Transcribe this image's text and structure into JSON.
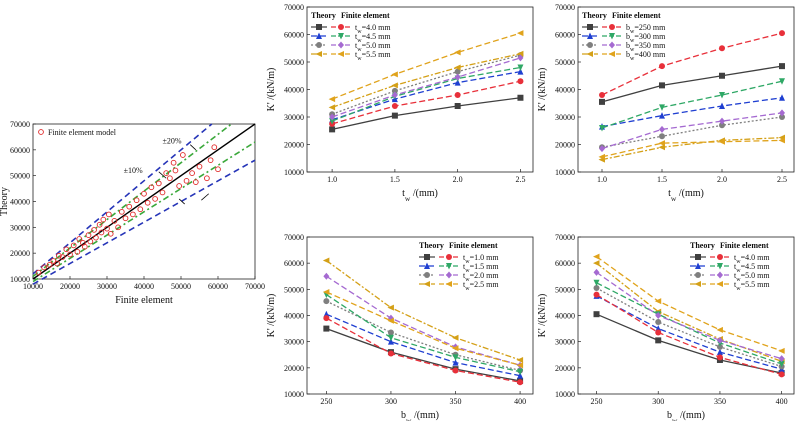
{
  "colors": {
    "theory": [
      "#404040",
      "#1f3fd1",
      "#7f7f7f",
      "#d4a017",
      "#7a5c2e"
    ],
    "fe": [
      "#e8303a",
      "#2fa866",
      "#a56ad1",
      "#e0a31c",
      "#26c0d4",
      "#8b2b1e"
    ]
  },
  "chart_data": [
    {
      "type": "scatter",
      "panel": "a",
      "xlabel": "Finite element",
      "ylabel": "Theory",
      "xlim": [
        10000,
        70000
      ],
      "ylim": [
        10000,
        70000
      ],
      "xticks": [
        "10000",
        "20000",
        "30000",
        "40000",
        "50000",
        "60000",
        "70000"
      ],
      "yticks": [
        "10000",
        "20000",
        "30000",
        "40000",
        "50000",
        "60000",
        "70000"
      ],
      "legend": "Finite element model",
      "annotations": [
        "±20%",
        "±10%"
      ],
      "points": [
        [
          11500,
          12500
        ],
        [
          13000,
          14500
        ],
        [
          14500,
          15500
        ],
        [
          15500,
          17000
        ],
        [
          16500,
          16000
        ],
        [
          17000,
          19000
        ],
        [
          18000,
          18500
        ],
        [
          19000,
          21500
        ],
        [
          20000,
          19500
        ],
        [
          21000,
          23000
        ],
        [
          22000,
          20500
        ],
        [
          22500,
          25500
        ],
        [
          23500,
          24000
        ],
        [
          24000,
          22500
        ],
        [
          25000,
          27000
        ],
        [
          25500,
          24500
        ],
        [
          26500,
          29000
        ],
        [
          27000,
          26000
        ],
        [
          28000,
          31000
        ],
        [
          28500,
          28000
        ],
        [
          29000,
          33000
        ],
        [
          30000,
          29500
        ],
        [
          30500,
          35000
        ],
        [
          31000,
          27500
        ],
        [
          32000,
          32500
        ],
        [
          33000,
          30000
        ],
        [
          34000,
          36000
        ],
        [
          35000,
          33500
        ],
        [
          36000,
          38000
        ],
        [
          37000,
          35000
        ],
        [
          38000,
          40500
        ],
        [
          39000,
          37000
        ],
        [
          40000,
          43000
        ],
        [
          41000,
          39500
        ],
        [
          42000,
          45500
        ],
        [
          43000,
          41000
        ],
        [
          44000,
          47000
        ],
        [
          45000,
          43500
        ],
        [
          46000,
          51000
        ],
        [
          47000,
          49000
        ],
        [
          48000,
          55000
        ],
        [
          48500,
          52000
        ],
        [
          49500,
          46000
        ],
        [
          50500,
          58000
        ],
        [
          51500,
          48000
        ],
        [
          53000,
          51000
        ],
        [
          54000,
          47500
        ],
        [
          55000,
          53500
        ],
        [
          57000,
          49000
        ],
        [
          58000,
          56000
        ],
        [
          59000,
          61000
        ],
        [
          60000,
          52500
        ]
      ]
    },
    {
      "type": "line",
      "panel": "b",
      "xlabel": "t_w /(mm)",
      "ylabel": "K' /(kN/m)",
      "xlim": [
        0.8,
        2.6
      ],
      "ylim": [
        10000,
        70000
      ],
      "x": [
        1.0,
        1.5,
        2.0,
        2.5
      ],
      "xticks": [
        "1.0",
        "1.5",
        "2.0",
        "2.5"
      ],
      "yticks": [
        "10000",
        "20000",
        "30000",
        "40000",
        "50000",
        "60000",
        "70000"
      ],
      "legend_title": [
        "Theory",
        "Finite element"
      ],
      "legend": [
        "t_w=4.0 mm",
        "t_w=4.5 mm",
        "t_w=5.0 mm",
        "t_w=5.5 mm"
      ],
      "theory": [
        [
          25500,
          30500,
          34000,
          37000
        ],
        [
          29000,
          36500,
          42500,
          46500
        ],
        [
          31000,
          39500,
          46500,
          52500
        ],
        [
          33500,
          41500,
          48000,
          53000
        ]
      ],
      "fe": [
        [
          27500,
          34000,
          38000,
          43000
        ],
        [
          28500,
          37500,
          44000,
          48000
        ],
        [
          30000,
          38000,
          44500,
          51500
        ],
        [
          36500,
          45500,
          53500,
          60500
        ]
      ]
    },
    {
      "type": "line",
      "panel": "c",
      "xlabel": "t_w /(mm)",
      "ylabel": "K' /(kN/m)",
      "xlim": [
        0.8,
        2.6
      ],
      "ylim": [
        10000,
        70000
      ],
      "x": [
        1.0,
        1.5,
        2.0,
        2.5
      ],
      "xticks": [
        "1.0",
        "1.5",
        "2.0",
        "2.5"
      ],
      "yticks": [
        "10000",
        "20000",
        "30000",
        "40000",
        "50000",
        "60000",
        "70000"
      ],
      "legend_title": [
        "Theory",
        "Finite element"
      ],
      "legend": [
        "b_w=250 mm",
        "b_w=300 mm",
        "b_w=350 mm",
        "b_w=400 mm"
      ],
      "theory": [
        [
          35500,
          41500,
          45000,
          48500
        ],
        [
          26500,
          30500,
          34000,
          37000
        ],
        [
          19000,
          23000,
          27000,
          30000
        ],
        [
          14500,
          19000,
          21500,
          22500
        ]
      ],
      "fe": [
        [
          38000,
          48500,
          55000,
          60500
        ],
        [
          26000,
          33500,
          38000,
          43000
        ],
        [
          18500,
          25500,
          28500,
          31500
        ],
        [
          15500,
          20500,
          21000,
          21500
        ]
      ]
    },
    {
      "type": "line",
      "panel": "d",
      "xlabel": "b_w /(mm)",
      "ylabel": "K' /(kN/m)",
      "xlim": [
        235,
        410
      ],
      "ylim": [
        10000,
        70000
      ],
      "x": [
        250,
        300,
        350,
        400
      ],
      "xticks": [
        "250",
        "300",
        "350",
        "400"
      ],
      "yticks": [
        "10000",
        "20000",
        "30000",
        "40000",
        "50000",
        "60000",
        "70000"
      ],
      "legend_title": [
        "Theory",
        "Finite element"
      ],
      "legend": [
        "t_w=1.0 mm",
        "t_w=1.5 mm",
        "t_w=2.0 mm",
        "t_w=2.5 mm"
      ],
      "theory": [
        [
          35000,
          26000,
          19500,
          15000
        ],
        [
          40500,
          30000,
          22000,
          17000
        ],
        [
          45500,
          33500,
          25000,
          19000
        ],
        [
          61000,
          43000,
          31500,
          23000
        ]
      ],
      "fe": [
        [
          39000,
          25500,
          19000,
          14500
        ],
        [
          48000,
          31500,
          24000,
          18500
        ],
        [
          55000,
          39000,
          28000,
          21000
        ],
        [
          49000,
          38000,
          27500,
          21000
        ]
      ]
    },
    {
      "type": "line",
      "panel": "e",
      "xlabel": "b_w /(mm)",
      "ylabel": "K' /(kN/m)",
      "xlim": [
        235,
        410
      ],
      "ylim": [
        10000,
        70000
      ],
      "x": [
        250,
        300,
        350,
        400
      ],
      "xticks": [
        "250",
        "300",
        "350",
        "400"
      ],
      "yticks": [
        "10000",
        "20000",
        "30000",
        "40000",
        "50000",
        "60000",
        "70000"
      ],
      "legend_title": [
        "Theory",
        "Finite element"
      ],
      "legend": [
        "t_w=4.0 mm",
        "t_w=4.5 mm",
        "t_w=5.0 mm",
        "t_w=5.5 mm"
      ],
      "theory": [
        [
          40500,
          30500,
          23000,
          18000
        ],
        [
          47500,
          35000,
          26000,
          19500
        ],
        [
          50500,
          37500,
          28000,
          20500
        ],
        [
          60000,
          41500,
          31000,
          22500
        ]
      ],
      "fe": [
        [
          48000,
          33500,
          24000,
          17500
        ],
        [
          52500,
          40500,
          29500,
          21500
        ],
        [
          56500,
          40000,
          30500,
          23500
        ],
        [
          62500,
          45500,
          34500,
          26500
        ]
      ]
    }
  ]
}
